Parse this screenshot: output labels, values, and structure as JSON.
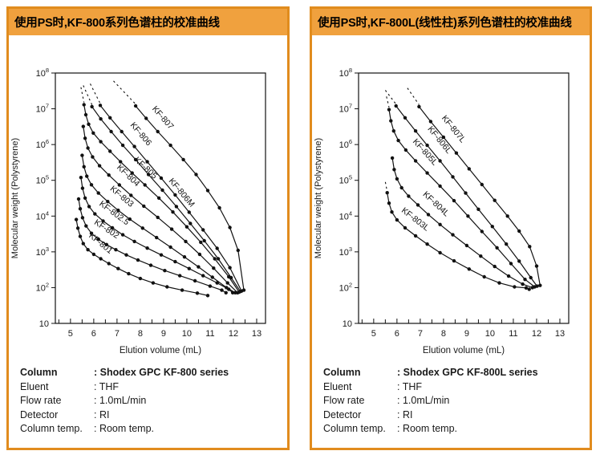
{
  "panels": [
    {
      "header": "使用PS时,KF-800系列色谱柱的校准曲线",
      "info_rows": [
        {
          "label": "Column",
          "value": ": Shodex GPC KF-800 series"
        },
        {
          "label": "Eluent",
          "value": ": THF"
        },
        {
          "label": "Flow rate",
          "value": ": 1.0mL/min"
        },
        {
          "label": "Detector",
          "value": ": RI"
        },
        {
          "label": "Column temp.",
          "value": ": Room temp."
        }
      ]
    },
    {
      "header": "使用PS时,KF-800L(线性柱)系列色谱柱的校准曲线",
      "info_rows": [
        {
          "label": "Column",
          "value": ": Shodex GPC KF-800L series"
        },
        {
          "label": "Eluent",
          "value": ": THF"
        },
        {
          "label": "Flow rate",
          "value": ": 1.0mL/min"
        },
        {
          "label": "Detector",
          "value": ": RI"
        },
        {
          "label": "Column temp.",
          "value": ": Room temp."
        }
      ]
    }
  ],
  "colors": {
    "accent_orange_border": "#E18C1E",
    "accent_orange_header": "#F0A13E",
    "curve_color": "#111111"
  },
  "chart_data": [
    {
      "type": "line",
      "title": "使用PS时,KF-800系列色谱柱的校准曲线",
      "xlabel": "Elution volume (mL)",
      "ylabel": "Molecular weight (Polystyrene)",
      "x_axis": {
        "min": 4.35,
        "max": 13.38,
        "ticks": [
          5,
          6,
          7,
          8,
          9,
          10,
          11,
          12,
          13
        ],
        "minor_step": 0.5
      },
      "y_axis": {
        "log": true,
        "exp_min": 1,
        "exp_max": 8,
        "tick_base": "10"
      },
      "grid": false,
      "legend_position": "on-curve-labels",
      "series": [
        {
          "name": "KF-801",
          "label_at": 5.95,
          "dash": null,
          "points": [
            [
              5.25,
              8000
            ],
            [
              5.32,
              4600
            ],
            [
              5.42,
              2700
            ],
            [
              5.55,
              1700
            ],
            [
              5.75,
              1150
            ],
            [
              6.0,
              850
            ],
            [
              6.3,
              640
            ],
            [
              6.65,
              470
            ],
            [
              7.05,
              340
            ],
            [
              7.5,
              245
            ],
            [
              8.0,
              180
            ],
            [
              8.55,
              135
            ],
            [
              9.15,
              105
            ],
            [
              9.8,
              85
            ],
            [
              10.45,
              70
            ],
            [
              10.9,
              60
            ]
          ]
        },
        {
          "name": "KF-802",
          "label_at": 6.25,
          "dash": null,
          "points": [
            [
              5.35,
              30000
            ],
            [
              5.42,
              16000
            ],
            [
              5.52,
              9000
            ],
            [
              5.67,
              5300
            ],
            [
              5.9,
              3300
            ],
            [
              6.2,
              2250
            ],
            [
              6.55,
              1600
            ],
            [
              6.95,
              1150
            ],
            [
              7.4,
              820
            ],
            [
              7.9,
              590
            ],
            [
              8.45,
              420
            ],
            [
              9.05,
              300
            ],
            [
              9.7,
              215
            ],
            [
              10.35,
              155
            ],
            [
              11.0,
              110
            ],
            [
              11.5,
              85
            ],
            [
              11.68,
              72
            ]
          ]
        },
        {
          "name": "KF-802.5",
          "label_at": 6.55,
          "dash": null,
          "points": [
            [
              5.45,
              120000
            ],
            [
              5.52,
              60000
            ],
            [
              5.63,
              32000
            ],
            [
              5.8,
              18500
            ],
            [
              6.05,
              11500
            ],
            [
              6.4,
              7300
            ],
            [
              6.8,
              4700
            ],
            [
              7.25,
              3000
            ],
            [
              7.75,
              1950
            ],
            [
              8.3,
              1270
            ],
            [
              8.9,
              820
            ],
            [
              9.5,
              530
            ],
            [
              10.1,
              340
            ],
            [
              10.7,
              215
            ],
            [
              11.3,
              135
            ],
            [
              11.8,
              90
            ],
            [
              11.97,
              72
            ]
          ]
        },
        {
          "name": "KF-803",
          "label_at": 6.85,
          "dash": null,
          "points": [
            [
              5.5,
              500000
            ],
            [
              5.58,
              240000
            ],
            [
              5.7,
              130000
            ],
            [
              5.9,
              75000
            ],
            [
              6.2,
              44000
            ],
            [
              6.6,
              25500
            ],
            [
              7.05,
              14500
            ],
            [
              7.55,
              8200
            ],
            [
              8.1,
              4600
            ],
            [
              8.7,
              2500
            ],
            [
              9.3,
              1350
            ],
            [
              9.9,
              720
            ],
            [
              10.5,
              380
            ],
            [
              11.1,
              195
            ],
            [
              11.7,
              100
            ],
            [
              12.08,
              72
            ]
          ]
        },
        {
          "name": "KF-804",
          "label_at": 7.1,
          "dash": null,
          "points": [
            [
              5.55,
              3200000
            ],
            [
              5.63,
              1500000
            ],
            [
              5.75,
              800000
            ],
            [
              5.95,
              450000
            ],
            [
              6.25,
              255000
            ],
            [
              6.65,
              140000
            ],
            [
              7.1,
              74000
            ],
            [
              7.6,
              38000
            ],
            [
              8.15,
              19000
            ],
            [
              8.75,
              9200
            ],
            [
              9.35,
              4300
            ],
            [
              9.95,
              1950
            ],
            [
              10.55,
              850
            ],
            [
              11.15,
              350
            ],
            [
              11.75,
              135
            ],
            [
              12.18,
              72
            ]
          ]
        },
        {
          "name": "KF-805",
          "label_at": 7.85,
          "dash": [
            [
              5.45,
              40000000
            ],
            [
              5.58,
              15000000
            ]
          ],
          "points": [
            [
              5.58,
              13000000
            ],
            [
              5.66,
              6800000
            ],
            [
              5.78,
              3700000
            ],
            [
              5.98,
              2100000
            ],
            [
              6.3,
              1200000
            ],
            [
              6.7,
              650000
            ],
            [
              7.15,
              330000
            ],
            [
              7.65,
              160000
            ],
            [
              8.2,
              74000
            ],
            [
              8.8,
              32000
            ],
            [
              9.4,
              13000
            ],
            [
              10.0,
              5000
            ],
            [
              10.6,
              1850
            ],
            [
              11.2,
              640
            ],
            [
              11.8,
              200
            ],
            [
              12.25,
              75
            ]
          ]
        },
        {
          "name": "KF-806M",
          "label_at": 9.35,
          "dash": [
            [
              5.55,
              45000000
            ],
            [
              5.92,
              13000000
            ]
          ],
          "points": [
            [
              5.92,
              11500000
            ],
            [
              6.3,
              5200000
            ],
            [
              6.75,
              2300000
            ],
            [
              7.25,
              950000
            ],
            [
              7.8,
              380000
            ],
            [
              8.35,
              145000
            ],
            [
              8.95,
              53000
            ],
            [
              9.55,
              18500
            ],
            [
              10.15,
              6200
            ],
            [
              10.75,
              2050
            ],
            [
              11.35,
              640
            ],
            [
              11.9,
              190
            ],
            [
              12.3,
              78
            ]
          ]
        },
        {
          "name": "KF-806",
          "label_at": 7.6,
          "dash": [
            [
              5.85,
              50000000
            ],
            [
              6.28,
              14000000
            ]
          ],
          "points": [
            [
              6.28,
              12500000
            ],
            [
              6.7,
              5600000
            ],
            [
              7.2,
              2300000
            ],
            [
              7.75,
              880000
            ],
            [
              8.3,
              330000
            ],
            [
              8.9,
              115000
            ],
            [
              9.5,
              39000
            ],
            [
              10.1,
              12800
            ],
            [
              10.7,
              4100
            ],
            [
              11.3,
              1250
            ],
            [
              11.85,
              360
            ],
            [
              12.35,
              80
            ]
          ]
        },
        {
          "name": "KF-807",
          "label_at": 8.55,
          "dash": [
            [
              6.85,
              60000000
            ],
            [
              7.8,
              13500000
            ]
          ],
          "points": [
            [
              7.8,
              12000000
            ],
            [
              8.25,
              5400000
            ],
            [
              8.75,
              2300000
            ],
            [
              9.3,
              950000
            ],
            [
              9.85,
              380000
            ],
            [
              10.4,
              145000
            ],
            [
              10.9,
              52000
            ],
            [
              11.4,
              17000
            ],
            [
              11.85,
              4800
            ],
            [
              12.2,
              1100
            ],
            [
              12.45,
              85
            ]
          ]
        }
      ]
    },
    {
      "type": "line",
      "title": "使用PS时,KF-800L(线性柱)系列色谱柱的校准曲线",
      "xlabel": "Elution volume (mL)",
      "ylabel": "Molecular weight (Polystyrene)",
      "x_axis": {
        "min": 4.35,
        "max": 13.38,
        "ticks": [
          5,
          6,
          7,
          8,
          9,
          10,
          11,
          12,
          13
        ],
        "minor_step": 0.5
      },
      "y_axis": {
        "log": true,
        "exp_min": 1,
        "exp_max": 8,
        "tick_base": "10"
      },
      "grid": false,
      "legend_position": "on-curve-labels",
      "series": [
        {
          "name": "KF-803L",
          "label_at": 6.45,
          "dash": [
            [
              5.5,
              90000
            ],
            [
              5.58,
              48000
            ]
          ],
          "points": [
            [
              5.58,
              45000
            ],
            [
              5.66,
              23000
            ],
            [
              5.78,
              13000
            ],
            [
              6.0,
              7800
            ],
            [
              6.35,
              4700
            ],
            [
              6.8,
              2800
            ],
            [
              7.3,
              1650
            ],
            [
              7.85,
              950
            ],
            [
              8.45,
              560
            ],
            [
              9.1,
              330
            ],
            [
              9.75,
              200
            ],
            [
              10.4,
              135
            ],
            [
              11.05,
              105
            ],
            [
              11.55,
              98
            ],
            [
              11.68,
              90
            ]
          ]
        },
        {
          "name": "KF-804L",
          "label_at": 7.3,
          "dash": null,
          "points": [
            [
              5.8,
              420000
            ],
            [
              5.88,
              200000
            ],
            [
              6.0,
              110000
            ],
            [
              6.2,
              62000
            ],
            [
              6.5,
              36000
            ],
            [
              6.9,
              20500
            ],
            [
              7.35,
              11000
            ],
            [
              7.85,
              5800
            ],
            [
              8.4,
              3000
            ],
            [
              9.0,
              1500
            ],
            [
              9.6,
              760
            ],
            [
              10.2,
              390
            ],
            [
              10.8,
              210
            ],
            [
              11.4,
              125
            ],
            [
              11.82,
              100
            ]
          ]
        },
        {
          "name": "KF-805L",
          "label_at": 6.8,
          "dash": [
            [
              5.55,
              22000000
            ],
            [
              5.66,
              11000000
            ]
          ],
          "points": [
            [
              5.66,
              9500000
            ],
            [
              5.74,
              4600000
            ],
            [
              5.86,
              2400000
            ],
            [
              6.06,
              1300000
            ],
            [
              6.38,
              700000
            ],
            [
              6.8,
              350000
            ],
            [
              7.3,
              160000
            ],
            [
              7.85,
              69000
            ],
            [
              8.45,
              27000
            ],
            [
              9.05,
              10000
            ],
            [
              9.65,
              3700
            ],
            [
              10.3,
              1300
            ],
            [
              10.9,
              470
            ],
            [
              11.5,
              170
            ],
            [
              11.92,
              105
            ]
          ]
        },
        {
          "name": "KF-806L",
          "label_at": 7.4,
          "dash": [
            [
              5.5,
              33000000
            ],
            [
              5.96,
              13500000
            ]
          ],
          "points": [
            [
              5.96,
              12000000
            ],
            [
              6.35,
              5600000
            ],
            [
              6.8,
              2400000
            ],
            [
              7.3,
              950000
            ],
            [
              7.85,
              350000
            ],
            [
              8.4,
              125000
            ],
            [
              8.95,
              44000
            ],
            [
              9.5,
              15500
            ],
            [
              10.1,
              5100
            ],
            [
              10.7,
              1650
            ],
            [
              11.25,
              550
            ],
            [
              11.75,
              190
            ],
            [
              12.02,
              110
            ]
          ]
        },
        {
          "name": "KF-807L",
          "label_at": 8.0,
          "dash": [
            [
              6.45,
              38000000
            ],
            [
              6.95,
              13000000
            ]
          ],
          "points": [
            [
              6.95,
              11500000
            ],
            [
              7.45,
              4400000
            ],
            [
              8.0,
              1600000
            ],
            [
              8.55,
              580000
            ],
            [
              9.1,
              210000
            ],
            [
              9.65,
              76000
            ],
            [
              10.2,
              27500
            ],
            [
              10.75,
              10000
            ],
            [
              11.25,
              3800
            ],
            [
              11.7,
              1400
            ],
            [
              12.0,
              400
            ],
            [
              12.15,
              115
            ]
          ]
        }
      ]
    }
  ]
}
